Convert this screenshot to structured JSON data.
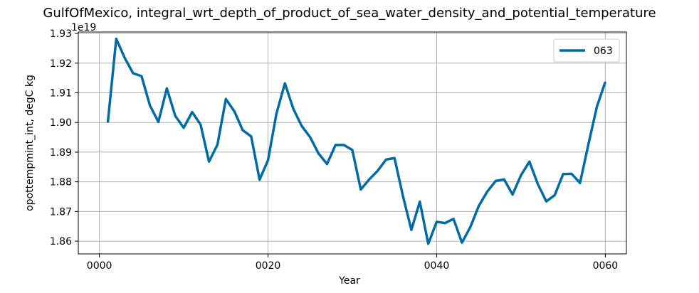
{
  "chart_data": {
    "type": "line",
    "title": "GulfOfMexico, integral_wrt_depth_of_product_of_sea_water_density_and_potential_temperature",
    "xlabel": "Year",
    "ylabel": "opottempmint_int, degC kg",
    "y_offset_label": "1e19",
    "xlim": [
      -2.5,
      62.5
    ],
    "ylim": [
      1.8557,
      1.9305
    ],
    "x_ticks": [
      0,
      20,
      40,
      60
    ],
    "x_tick_labels": [
      "0000",
      "0020",
      "0040",
      "0060"
    ],
    "y_ticks": [
      1.86,
      1.87,
      1.88,
      1.89,
      1.9,
      1.91,
      1.92,
      1.93
    ],
    "y_tick_labels": [
      "1.86",
      "1.87",
      "1.88",
      "1.89",
      "1.90",
      "1.91",
      "1.92",
      "1.93"
    ],
    "grid": true,
    "legend_position": "top-right",
    "series": [
      {
        "name": "063",
        "color": "#006ba4",
        "x": [
          1,
          2,
          3,
          4,
          5,
          6,
          7,
          8,
          9,
          10,
          11,
          12,
          13,
          14,
          15,
          16,
          17,
          18,
          19,
          20,
          21,
          22,
          23,
          24,
          25,
          26,
          27,
          28,
          29,
          30,
          31,
          32,
          33,
          34,
          35,
          36,
          37,
          38,
          39,
          40,
          41,
          42,
          43,
          44,
          45,
          46,
          47,
          48,
          49,
          50,
          51,
          52,
          53,
          54,
          55,
          56,
          57,
          58,
          59,
          60
        ],
        "values": [
          1.9,
          1.9282,
          1.9218,
          1.9166,
          1.9156,
          1.9057,
          1.9002,
          1.9115,
          1.9022,
          1.8982,
          1.9035,
          1.8993,
          1.8868,
          1.8925,
          1.9079,
          1.9038,
          1.8974,
          1.8953,
          1.8807,
          1.8873,
          1.903,
          1.9132,
          1.9046,
          1.8988,
          1.895,
          1.8895,
          1.886,
          1.8924,
          1.8924,
          1.8907,
          1.8774,
          1.8808,
          1.8837,
          1.8875,
          1.888,
          1.8752,
          1.8638,
          1.8733,
          1.8591,
          1.8665,
          1.8661,
          1.8675,
          1.8595,
          1.8648,
          1.8719,
          1.8767,
          1.8803,
          1.8808,
          1.8757,
          1.8822,
          1.8868,
          1.8792,
          1.8734,
          1.8755,
          1.8826,
          1.8827,
          1.8796,
          1.8927,
          1.9053,
          1.9137
        ]
      }
    ]
  }
}
